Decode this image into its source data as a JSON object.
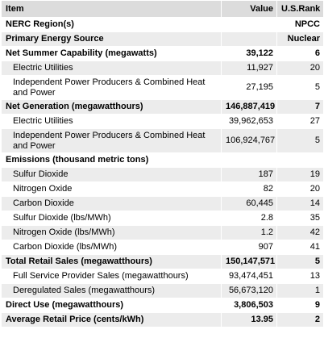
{
  "table": {
    "headers": [
      "Item",
      "Value",
      "U.S.Rank"
    ],
    "rows": [
      {
        "label": "NERC Region(s)",
        "value": "",
        "rank": "NPCC",
        "bold": true,
        "indent": false
      },
      {
        "label": "Primary Energy Source",
        "value": "",
        "rank": "Nuclear",
        "bold": true,
        "indent": false
      },
      {
        "label": "Net Summer Capability (megawatts)",
        "value": "39,122",
        "rank": "6",
        "bold": true,
        "indent": false
      },
      {
        "label": "Electric Utilities",
        "value": "11,927",
        "rank": "20",
        "bold": false,
        "indent": true
      },
      {
        "label": "Independent Power Producers & Combined Heat and Power",
        "value": "27,195",
        "rank": "5",
        "bold": false,
        "indent": true,
        "tall": true
      },
      {
        "label": "Net Generation (megawatthours)",
        "value": "146,887,419",
        "rank": "7",
        "bold": true,
        "indent": false
      },
      {
        "label": "Electric Utilities",
        "value": "39,962,653",
        "rank": "27",
        "bold": false,
        "indent": true
      },
      {
        "label": "Independent Power Producers & Combined Heat and Power",
        "value": "106,924,767",
        "rank": "5",
        "bold": false,
        "indent": true,
        "tall": true
      },
      {
        "label": "Emissions (thousand metric tons)",
        "value": "",
        "rank": "",
        "bold": true,
        "indent": false
      },
      {
        "label": "Sulfur Dioxide",
        "value": "187",
        "rank": "19",
        "bold": false,
        "indent": true
      },
      {
        "label": "Nitrogen Oxide",
        "value": "82",
        "rank": "20",
        "bold": false,
        "indent": true
      },
      {
        "label": "Carbon Dioxide",
        "value": "60,445",
        "rank": "14",
        "bold": false,
        "indent": true
      },
      {
        "label": "Sulfur Dioxide (lbs/MWh)",
        "value": "2.8",
        "rank": "35",
        "bold": false,
        "indent": true
      },
      {
        "label": "Nitrogen Oxide (lbs/MWh)",
        "value": "1.2",
        "rank": "42",
        "bold": false,
        "indent": true
      },
      {
        "label": "Carbon Dioxide (lbs/MWh)",
        "value": "907",
        "rank": "41",
        "bold": false,
        "indent": true
      },
      {
        "label": "Total Retail Sales (megawatthours)",
        "value": "150,147,571",
        "rank": "5",
        "bold": true,
        "indent": false
      },
      {
        "label": "Full Service Provider Sales (megawatthours)",
        "value": "93,474,451",
        "rank": "13",
        "bold": false,
        "indent": true
      },
      {
        "label": "Deregulated Sales (megawatthours)",
        "value": "56,673,120",
        "rank": "1",
        "bold": false,
        "indent": true
      },
      {
        "label": "Direct Use (megawatthours)",
        "value": "3,806,503",
        "rank": "9",
        "bold": true,
        "indent": false
      },
      {
        "label": "Average Retail Price (cents/kWh)",
        "value": "13.95",
        "rank": "2",
        "bold": true,
        "indent": false
      }
    ]
  }
}
